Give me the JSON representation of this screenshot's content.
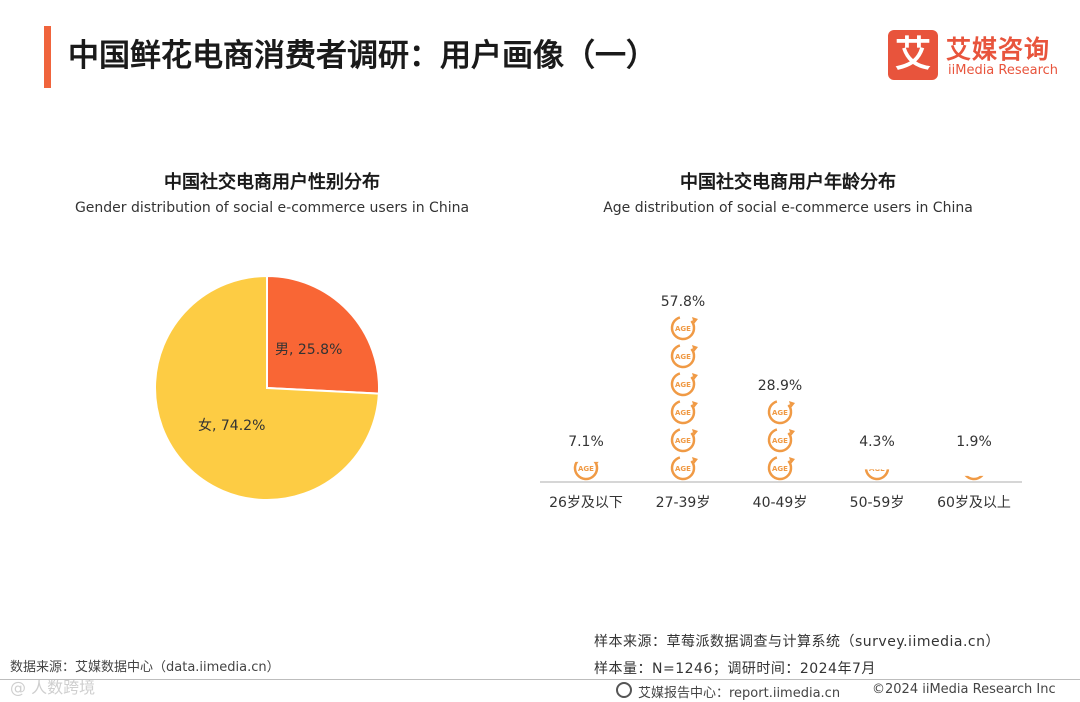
{
  "header": {
    "title": "中国鲜花电商消费者调研：用户画像（一）",
    "logo_mark": "艾",
    "logo_cn": "艾媒咨询",
    "logo_en": "iiMedia Research"
  },
  "colors": {
    "accent": "#f0643c",
    "male": "#f96635",
    "female": "#fdcc44",
    "age_icon": "#f09a45",
    "baseline": "#c8c8c8"
  },
  "chart_data": [
    {
      "type": "pie",
      "title": "中国社交电商用户性别分布",
      "subtitle": "Gender distribution of social e-commerce users in China",
      "slices": [
        {
          "label": "男",
          "value": 25.8,
          "display": "男, 25.8%"
        },
        {
          "label": "女",
          "value": 74.2,
          "display": "女, 74.2%"
        }
      ]
    },
    {
      "type": "bar",
      "title": "中国社交电商用户年龄分布",
      "subtitle": "Age distribution of social e-commerce users in China",
      "categories": [
        "26岁及以下",
        "27-39岁",
        "40-49岁",
        "50-59岁",
        "60岁及以上"
      ],
      "values": [
        7.1,
        57.8,
        28.9,
        4.3,
        1.9
      ],
      "value_labels": [
        "7.1%",
        "57.8%",
        "28.9%",
        "4.3%",
        "1.9%"
      ],
      "unit": "%",
      "icon_label": "AGE"
    }
  ],
  "footer": {
    "source_left": "数据来源：艾媒数据中心（data.iimedia.cn）",
    "watermark": "@ 人数跨境",
    "sample_source": "样本来源：草莓派数据调查与计算系统（survey.iimedia.cn）",
    "sample_size": "样本量：N=1246；调研时间：2024年7月",
    "report": "艾媒报告中心：report.iimedia.cn",
    "copyright": "©2024  iiMedia Research Inc"
  }
}
